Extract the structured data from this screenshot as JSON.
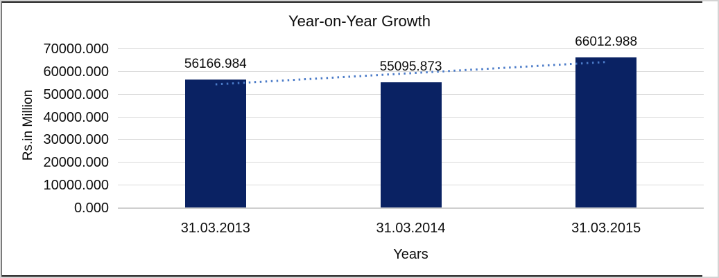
{
  "chart_data": {
    "type": "bar",
    "title": "Year-on-Year Growth",
    "xlabel": "Years",
    "ylabel": "Rs.in Million",
    "categories": [
      "31.03.2013",
      "31.03.2014",
      "31.03.2015"
    ],
    "values": [
      56166.984,
      55095.873,
      66012.988
    ],
    "data_labels": [
      "56166.984",
      "55095.873",
      "66012.988"
    ],
    "ylim": [
      0,
      70000
    ],
    "ytick_step": 10000,
    "yticks": [
      "70000.000",
      "60000.000",
      "50000.000",
      "40000.000",
      "30000.000",
      "20000.000",
      "10000.000",
      "0.000"
    ],
    "grid": true,
    "legend": "none",
    "trendline": {
      "style": "dotted-linear",
      "fit_endpoints": [
        54168.95,
        64014.95
      ]
    },
    "colors": {
      "bar": "#0a2263",
      "trendline": "#4b7bc8",
      "gridline": "#d9d9d9",
      "axis_line": "#cfcfcf",
      "text": "#0d0d0d",
      "frame_dark": "#1c1c1c",
      "frame_light": "#d4d4d4",
      "background": "#ffffff"
    }
  }
}
